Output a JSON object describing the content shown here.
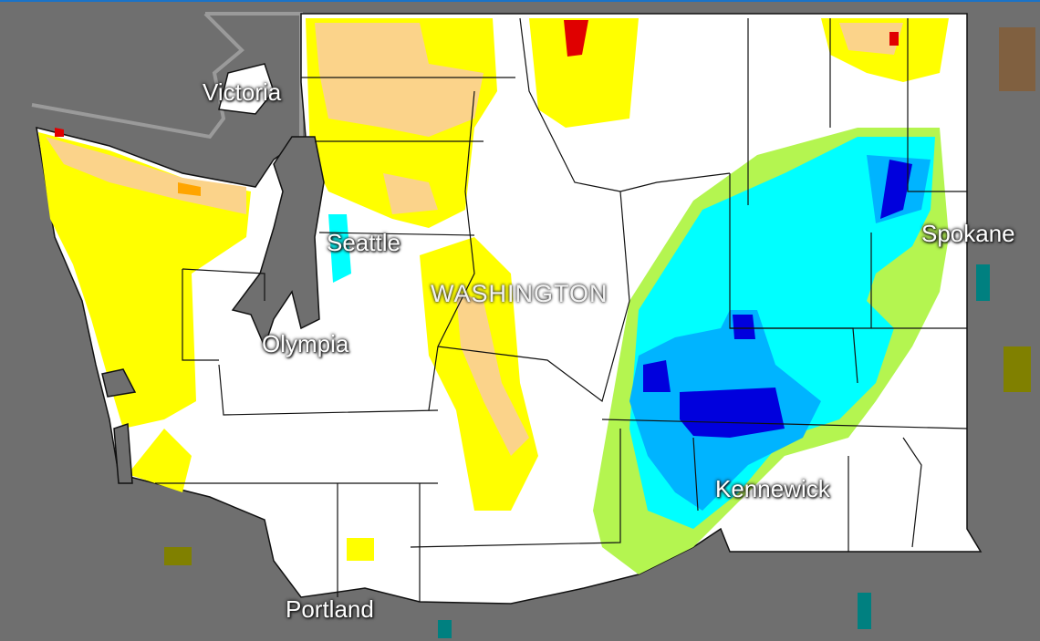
{
  "map": {
    "labels": {
      "victoria": "Victoria",
      "seattle": "Seattle",
      "washington": "WASHINGTON",
      "olympia": "Olympia",
      "spokane": "Spokane",
      "kennewick": "Kennewick",
      "portland": "Portland"
    },
    "colors": {
      "background": "#6f6f6f",
      "land": "#ffffff",
      "very_dry": "#e00000",
      "dry_orange": "#ffa500",
      "dry_tan": "#fbd38a",
      "dry_yellow": "#ffff00",
      "wet_lime": "#b4f550",
      "wet_cyan": "#00ffff",
      "wet_blue": "#00b4ff",
      "very_wet": "#0000dd",
      "accent_bar": "#1a73c8"
    }
  }
}
